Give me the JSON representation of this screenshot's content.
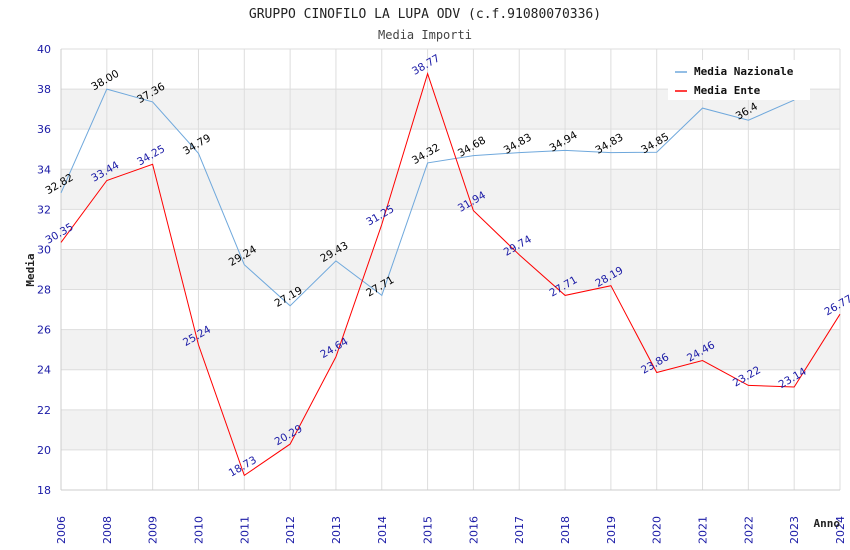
{
  "chart_data": {
    "type": "line",
    "title": "GRUPPO CINOFILO LA LUPA ODV (c.f.91080070336)",
    "subtitle": "Media Importi",
    "xlabel": "Anno",
    "ylabel": "Media",
    "ylim": [
      18,
      40
    ],
    "yticks": [
      18,
      20,
      22,
      24,
      26,
      28,
      30,
      32,
      34,
      36,
      38,
      40
    ],
    "categories": [
      "2006",
      "2008",
      "2009",
      "2010",
      "2011",
      "2012",
      "2013",
      "2014",
      "2015",
      "2016",
      "2017",
      "2018",
      "2019",
      "2020",
      "2021",
      "2022",
      "2023",
      "2024"
    ],
    "legend_position": "top-right",
    "series": [
      {
        "name": "Media Nazionale",
        "color": "#6fa8dc",
        "label_color": "#000000",
        "values": [
          32.82,
          38.0,
          37.36,
          34.79,
          29.24,
          27.19,
          29.43,
          27.71,
          34.32,
          34.68,
          34.83,
          34.94,
          34.83,
          34.85,
          37.05,
          36.45,
          37.45,
          null
        ],
        "labels": [
          "32.82",
          "38.00",
          "37.36",
          "34.79",
          "29.24",
          "27.19",
          "29.43",
          "27.71",
          "34.32",
          "34.68",
          "34.83",
          "34.94",
          "34.83",
          "34.85",
          "",
          "36.4",
          "",
          ""
        ]
      },
      {
        "name": "Media Ente",
        "color": "#ff0000",
        "label_color": "#1a1aa6",
        "values": [
          30.35,
          33.44,
          34.25,
          25.24,
          18.73,
          20.29,
          24.64,
          31.25,
          38.77,
          31.94,
          29.74,
          27.71,
          28.19,
          23.86,
          24.46,
          23.22,
          23.14,
          26.77
        ],
        "labels": [
          "30.35",
          "33.44",
          "34.25",
          "25.24",
          "18.73",
          "20.29",
          "24.64",
          "31.25",
          "38.77",
          "31.94",
          "29.74",
          "27.71",
          "28.19",
          "23.86",
          "24.46",
          "23.22",
          "23.14",
          "26.77"
        ]
      }
    ]
  }
}
